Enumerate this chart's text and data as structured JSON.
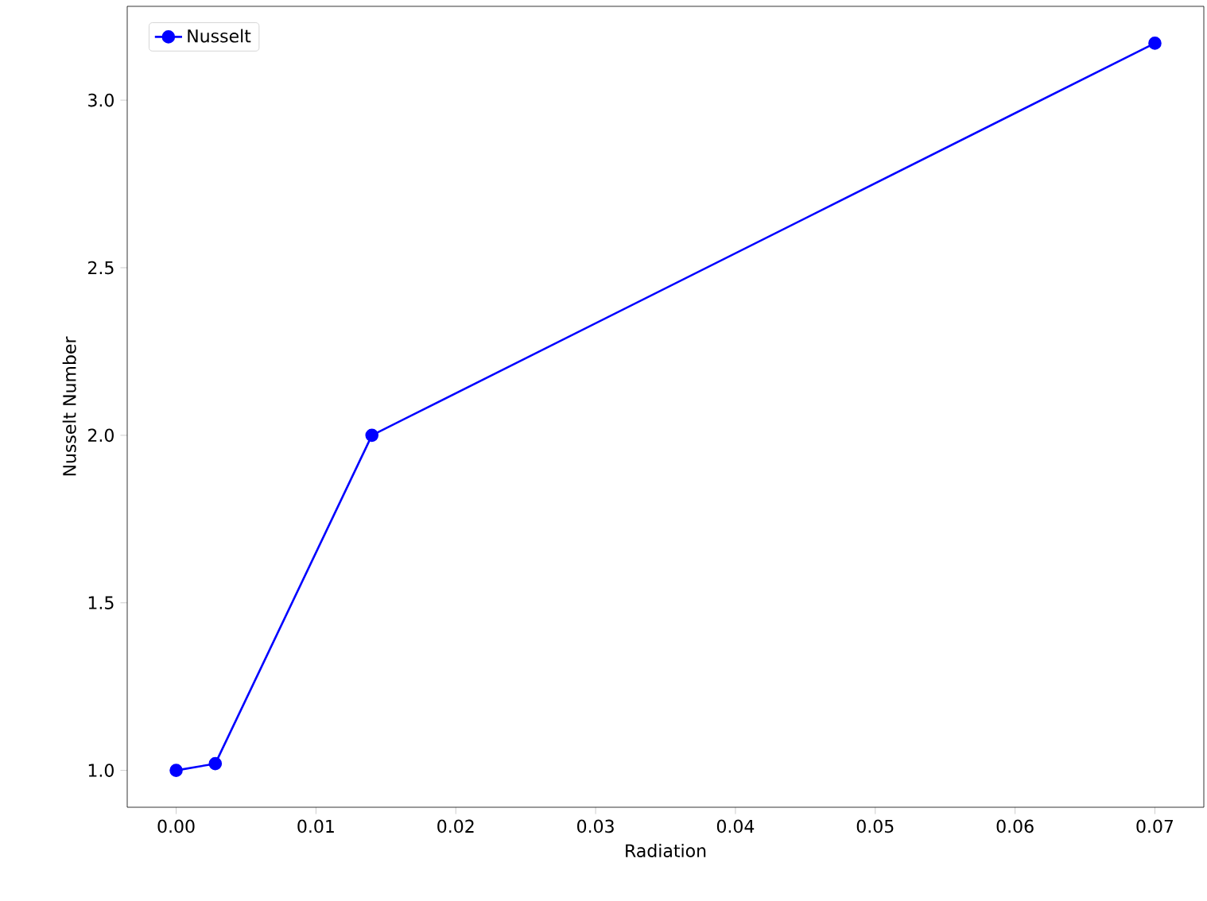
{
  "chart_data": {
    "type": "line",
    "xlabel": "Radiation",
    "ylabel": "Nusselt Number",
    "x": [
      0.0,
      0.0028,
      0.014,
      0.07
    ],
    "series": [
      {
        "name": "Nusselt",
        "color": "#0000ff",
        "values": [
          1.0,
          1.02,
          2.0,
          3.17
        ]
      }
    ],
    "xlim": [
      -0.0035,
      0.0735
    ],
    "ylim": [
      0.89,
      3.28
    ],
    "xticks": [
      {
        "value": 0,
        "label": "0.00"
      },
      0.01,
      0.02,
      0.03,
      0.04,
      0.05,
      0.06,
      0.07
    ],
    "yticks": [
      {
        "value": 1,
        "label": "1.0"
      },
      1.5,
      {
        "value": 2,
        "label": "2.0"
      },
      2.5,
      {
        "value": 3,
        "label": "3.0"
      }
    ],
    "legend": "top left",
    "marker": "circle",
    "line_style": "solid",
    "grid": false
  }
}
